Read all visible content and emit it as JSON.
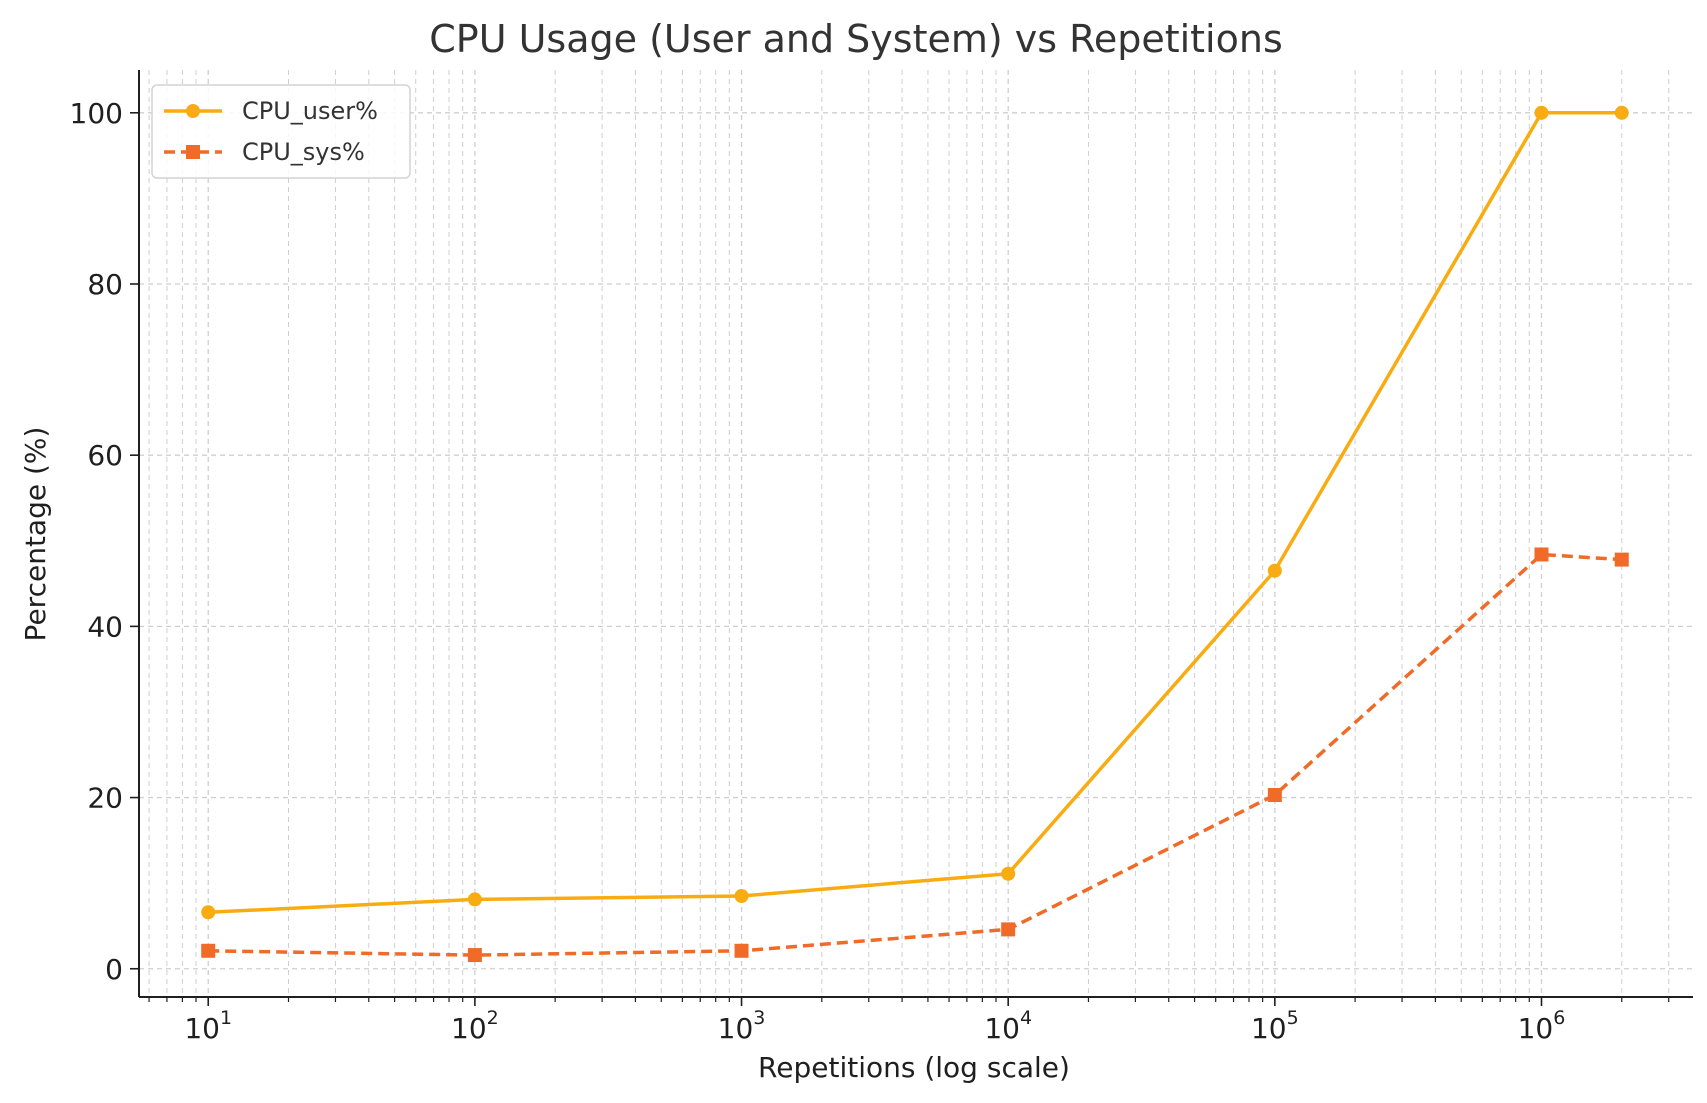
{
  "chart_data": {
    "type": "line",
    "title": "CPU Usage (User and System) vs Repetitions",
    "xlabel": "Repetitions (log scale)",
    "ylabel": "Percentage (%)",
    "xscale": "log",
    "xlim": [
      5.5,
      3700000
    ],
    "ylim": [
      -3.3,
      105
    ],
    "x": [
      10,
      100,
      1000,
      10000,
      100000,
      1000000,
      2000000
    ],
    "x_ticks": [
      {
        "base": "10",
        "exp": "1",
        "value": 10
      },
      {
        "base": "10",
        "exp": "2",
        "value": 100
      },
      {
        "base": "10",
        "exp": "3",
        "value": 1000
      },
      {
        "base": "10",
        "exp": "4",
        "value": 10000
      },
      {
        "base": "10",
        "exp": "5",
        "value": 100000
      },
      {
        "base": "10",
        "exp": "6",
        "value": 1000000
      }
    ],
    "y_ticks": [
      {
        "label": "0",
        "value": 0
      },
      {
        "label": "20",
        "value": 20
      },
      {
        "label": "40",
        "value": 40
      },
      {
        "label": "60",
        "value": 60
      },
      {
        "label": "80",
        "value": 80
      },
      {
        "label": "100",
        "value": 100
      }
    ],
    "grid": true,
    "grid_style": "dashed, major and minor",
    "legend_position": "top-left",
    "series": [
      {
        "name": "CPU_user%",
        "color": "#F9AC12",
        "line_style": "solid",
        "marker": "circle",
        "values": [
          6.6,
          8.1,
          8.5,
          11.1,
          46.5,
          100.0,
          100.0
        ]
      },
      {
        "name": "CPU_sys%",
        "color": "#F06A28",
        "line_style": "dashed",
        "marker": "square",
        "values": [
          2.1,
          1.6,
          2.1,
          4.6,
          20.3,
          48.4,
          47.8
        ]
      }
    ]
  }
}
